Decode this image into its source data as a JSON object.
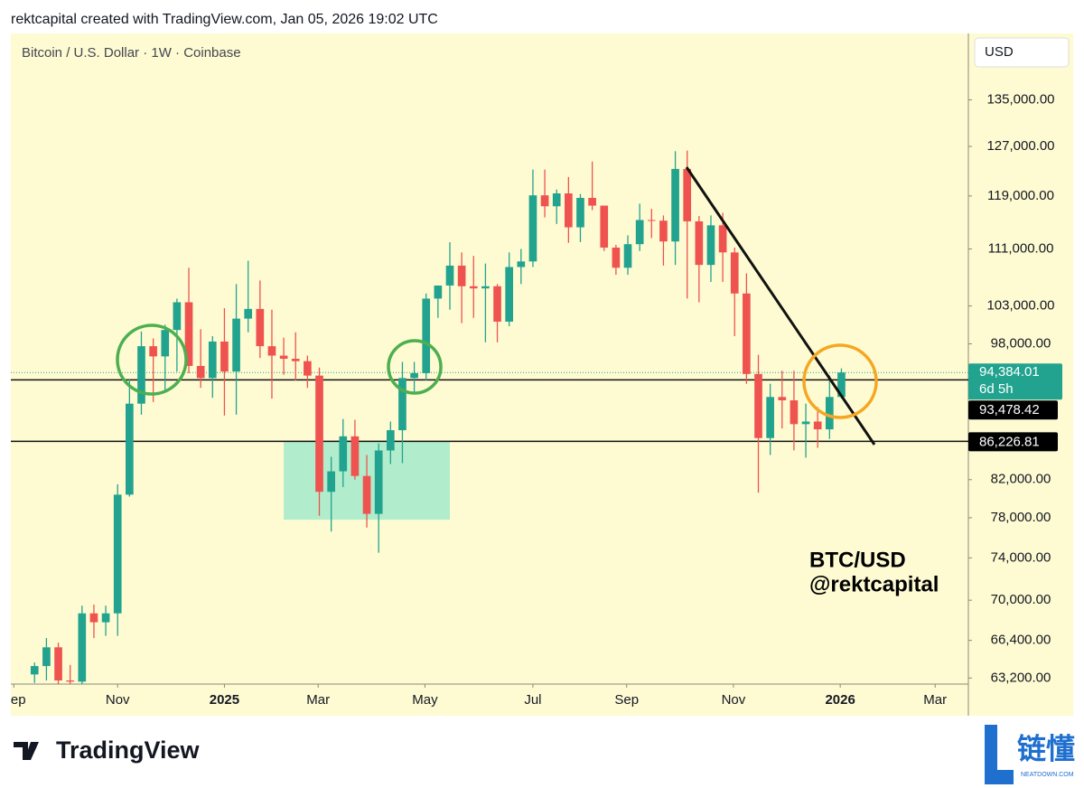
{
  "header": {
    "attribution": "rektcapital created with TradingView.com, Jan 05, 2026 19:02 UTC"
  },
  "chart_data": {
    "type": "candlestick",
    "title": "Bitcoin / U.S. Dollar · 1W · Coinbase",
    "currency": "USD",
    "annotations": [
      "BTC/USD",
      "@rektcapital"
    ],
    "open": [
      63500,
      64200,
      65800,
      63000,
      62900,
      68800,
      68000,
      68800,
      80400,
      90600,
      97700,
      96400,
      99800,
      103500,
      95200,
      93700,
      98300,
      94500,
      101300,
      102600,
      97700,
      96500,
      96100,
      95800,
      94000,
      80700,
      82900,
      86800,
      82400,
      78400,
      85200,
      87500,
      93700,
      94300,
      104000,
      105800,
      108600,
      105700,
      105400,
      105700,
      100900,
      108400,
      109200,
      119100,
      117400,
      119400,
      114200,
      118700,
      117500,
      111200,
      108300,
      111700,
      115300,
      115200,
      112100,
      123300,
      115100,
      108700,
      114500,
      110500,
      104700,
      94200,
      86600,
      91400,
      91000,
      88200,
      88500,
      87600,
      91400
    ],
    "high": [
      64500,
      66600,
      66200,
      64300,
      69500,
      69600,
      69500,
      81500,
      93500,
      99600,
      98700,
      100500,
      104000,
      108300,
      99900,
      99000,
      102700,
      106000,
      109300,
      106500,
      102500,
      98800,
      99500,
      96500,
      95000,
      84500,
      88800,
      88700,
      84700,
      86000,
      88500,
      95700,
      95700,
      104700,
      105800,
      112000,
      110500,
      110000,
      108900,
      106000,
      110500,
      111000,
      123200,
      123200,
      120000,
      122000,
      119300,
      124500,
      117500,
      111600,
      113000,
      117800,
      117000,
      116000,
      126200,
      126300,
      115900,
      116000,
      116400,
      111200,
      107500,
      96600,
      93000,
      94600,
      94600,
      90600,
      90200,
      94000,
      94900
    ],
    "low": [
      62800,
      63000,
      60000,
      58900,
      62300,
      66600,
      66800,
      66800,
      80200,
      89300,
      90800,
      92000,
      94500,
      94300,
      92500,
      91300,
      89200,
      89300,
      99500,
      96200,
      91200,
      94100,
      93400,
      92500,
      78200,
      76600,
      81200,
      82000,
      77000,
      74500,
      83700,
      83800,
      91900,
      93400,
      101400,
      102500,
      100700,
      101400,
      98200,
      98200,
      100300,
      106000,
      108400,
      115700,
      114700,
      111900,
      112000,
      116800,
      110700,
      107300,
      107300,
      110700,
      112600,
      108600,
      108700,
      104000,
      103500,
      106300,
      106300,
      99000,
      93000,
      80600,
      84700,
      87700,
      85200,
      84400,
      85500,
      86500,
      91200
    ],
    "close": [
      64200,
      65800,
      63000,
      62900,
      68800,
      68000,
      68800,
      80400,
      90600,
      97700,
      96400,
      99800,
      103500,
      95200,
      93700,
      98300,
      94500,
      101300,
      102600,
      97700,
      96500,
      96100,
      95800,
      94000,
      80700,
      82900,
      86800,
      82400,
      78400,
      85200,
      87500,
      93700,
      94300,
      104000,
      105800,
      108600,
      105700,
      105400,
      105700,
      100900,
      108400,
      109200,
      119100,
      117400,
      119400,
      114200,
      118700,
      117500,
      111200,
      108300,
      111700,
      115300,
      115200,
      112100,
      123300,
      115100,
      108700,
      114500,
      110500,
      104700,
      94200,
      86600,
      91400,
      91000,
      88200,
      88500,
      87600,
      91400,
      94384.01
    ],
    "up_color": "#22a38f",
    "down_color": "#ef5350",
    "log_scale": true,
    "xlim": [
      -2,
      78.7
    ],
    "xticks": [
      {
        "value": -1.75,
        "label": "Sep"
      },
      {
        "value": 7,
        "label": "Nov"
      },
      {
        "value": 16,
        "label": "2025"
      },
      {
        "value": 23.9,
        "label": "Mar"
      },
      {
        "value": 32.9,
        "label": "May"
      },
      {
        "value": 42,
        "label": "Jul"
      },
      {
        "value": 49.9,
        "label": "Sep"
      },
      {
        "value": 58.9,
        "label": "Nov"
      },
      {
        "value": 67.9,
        "label": "2026"
      },
      {
        "value": 75.9,
        "label": "Mar"
      }
    ],
    "ylim": [
      62700,
      147300
    ],
    "yticks": [
      {
        "value": 135000,
        "label": "135,000.00"
      },
      {
        "value": 127000,
        "label": "127,000.00"
      },
      {
        "value": 119000,
        "label": "119,000.00"
      },
      {
        "value": 111000,
        "label": "111,000.00"
      },
      {
        "value": 103000,
        "label": "103,000.00"
      },
      {
        "value": 98000,
        "label": "98,000.00"
      },
      {
        "value": 82000,
        "label": "82,000.00"
      },
      {
        "value": 78000,
        "label": "78,000.00"
      },
      {
        "value": 74000,
        "label": "74,000.00"
      },
      {
        "value": 70000,
        "label": "70,000.00"
      },
      {
        "value": 66400,
        "label": "66,400.00"
      },
      {
        "value": 63200,
        "label": "63,200.00"
      }
    ],
    "last_price": {
      "value": 94384.01,
      "label": "94,384.01",
      "countdown": "6d 5h"
    },
    "levels": [
      {
        "value": 93478.42,
        "label": "93,478.42"
      },
      {
        "value": 86226.81,
        "label": "86,226.81"
      }
    ],
    "zone": {
      "x": [
        21,
        35
      ],
      "y": [
        77800,
        86226.81
      ]
    }
  },
  "brand": {
    "name": "TradingView",
    "watermark": "链懂",
    "watermark_site": "NEATDOWN.COM"
  }
}
